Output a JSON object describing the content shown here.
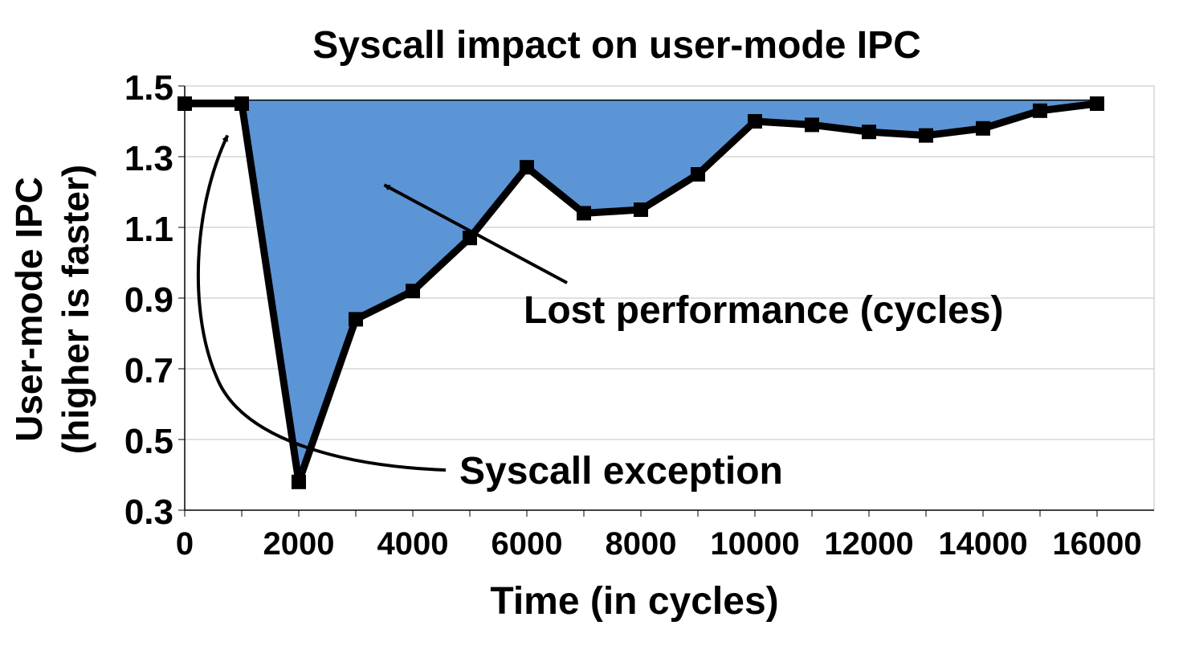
{
  "chart_data": {
    "type": "area",
    "title": "Syscall impact on user-mode IPC",
    "xlabel": "Time (in cycles)",
    "ylabel": [
      "User-mode IPC",
      "(higher is faster)"
    ],
    "x_ticks": [
      0,
      2000,
      4000,
      6000,
      8000,
      10000,
      12000,
      14000,
      16000
    ],
    "y_ticks": [
      "0.3",
      "0.5",
      "0.7",
      "0.9",
      "1.1",
      "1.3",
      "1.5"
    ],
    "xlim": [
      0,
      17000
    ],
    "ylim": [
      0.3,
      1.5
    ],
    "grid": true,
    "baseline_ipc": 1.46,
    "x": [
      0,
      1000,
      2000,
      3000,
      4000,
      5000,
      6000,
      7000,
      8000,
      9000,
      10000,
      11000,
      12000,
      13000,
      14000,
      15000,
      16000
    ],
    "series": [
      {
        "values": [
          1.45,
          1.45,
          0.38,
          0.84,
          0.92,
          1.07,
          1.27,
          1.14,
          1.15,
          1.25,
          1.4,
          1.39,
          1.37,
          1.36,
          1.38,
          1.43,
          1.45
        ],
        "color": "#5b95d6"
      }
    ],
    "line_color": "#000000",
    "annotations": [
      {
        "text": "Lost performance (cycles)",
        "points_to": {
          "x": 3500,
          "y": 1.22
        }
      },
      {
        "text": "Syscall exception",
        "points_to": {
          "x": 750,
          "y": 1.41
        }
      }
    ]
  }
}
